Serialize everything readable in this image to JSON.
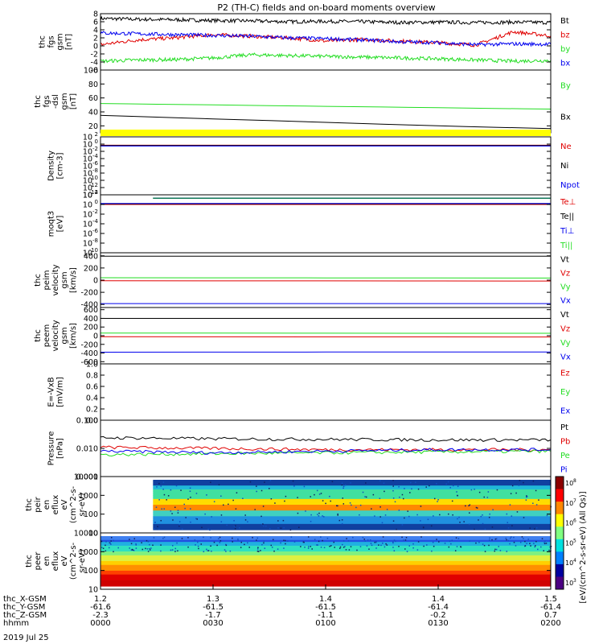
{
  "title": "P2 (TH-C) fields and on-board moments overview",
  "date_label": "2019 Jul 25",
  "colors": {
    "black": "#000000",
    "red": "#e00000",
    "green": "#22dd22",
    "blue": "#0000ee",
    "yellow": "#ffff00",
    "teal": "#0a6a5a"
  },
  "chart_data": [
    {
      "type": "line",
      "id": "fgs",
      "ylabel": [
        "thc",
        "fgs",
        "gsm",
        "[nT]"
      ],
      "ylim": [
        -6,
        8
      ],
      "yticks": [
        -6,
        -4,
        -2,
        0,
        2,
        4,
        6,
        8
      ],
      "tick_labels": [
        "-6",
        "-4",
        "-2",
        "0",
        "2",
        "4",
        "6",
        "8"
      ],
      "series": [
        {
          "name": "Bt",
          "color": "black",
          "x": [
            0,
            10,
            20,
            30,
            40,
            50,
            60,
            70,
            80,
            90,
            100,
            110,
            120
          ],
          "y": [
            6.8,
            6.6,
            6.5,
            6.3,
            6.2,
            6.0,
            6.1,
            6.0,
            5.8,
            5.9,
            5.8,
            5.9,
            5.8
          ]
        },
        {
          "name": "bz",
          "color": "red",
          "x": [
            0,
            10,
            20,
            30,
            40,
            50,
            60,
            70,
            80,
            90,
            100,
            110,
            120
          ],
          "y": [
            0.3,
            1.5,
            2.0,
            2.8,
            2.4,
            2.0,
            1.2,
            1.6,
            1.2,
            0.8,
            0.2,
            3.5,
            2.5
          ]
        },
        {
          "name": "by",
          "color": "green",
          "x": [
            0,
            10,
            20,
            30,
            40,
            50,
            60,
            70,
            80,
            90,
            100,
            110,
            120
          ],
          "y": [
            -3.8,
            -3.5,
            -3.4,
            -3.0,
            -2.2,
            -2.4,
            -2.6,
            -2.8,
            -3.0,
            -3.2,
            -3.5,
            -3.8,
            -3.6
          ]
        },
        {
          "name": "bx",
          "color": "blue",
          "x": [
            0,
            10,
            20,
            30,
            40,
            50,
            60,
            70,
            80,
            90,
            100,
            110,
            120
          ],
          "y": [
            3.2,
            3.0,
            2.8,
            2.6,
            2.4,
            2.0,
            1.8,
            1.5,
            1.0,
            0.8,
            0.3,
            0.5,
            0.4
          ]
        }
      ]
    },
    {
      "type": "line",
      "id": "fgs_dsl",
      "ylabel": [
        "thc",
        "fgs",
        "-dsl",
        "gsm",
        "[nT]"
      ],
      "ylim": [
        10,
        100
      ],
      "yticks": [
        20,
        40,
        60,
        80,
        100
      ],
      "tick_labels": [
        "20",
        "40",
        "60",
        "80",
        "100"
      ],
      "series": [
        {
          "name": "By",
          "color": "green",
          "x": [
            0,
            30,
            60,
            90,
            120
          ],
          "y": [
            52,
            50,
            48,
            46,
            44
          ]
        },
        {
          "name": "Bx",
          "color": "black",
          "x": [
            0,
            30,
            60,
            90,
            120
          ],
          "y": [
            35,
            30,
            25,
            20,
            16
          ]
        }
      ]
    },
    {
      "type": "line",
      "id": "density",
      "yscale": "log",
      "ylabel": [
        "Density",
        "[cm-3]"
      ],
      "ylim": [
        1e-14,
        100
      ],
      "tick_labels": [
        "10",
        "10",
        "10",
        "10",
        "10",
        "10",
        "10",
        "10",
        "10"
      ],
      "tick_exps": [
        "2",
        "0",
        "-2",
        "-4",
        "-6",
        "-8",
        "-10",
        "-12",
        "-14"
      ],
      "series": [
        {
          "name": "Ne",
          "color": "red",
          "x": [
            0,
            120
          ],
          "y": [
            0.5,
            0.5
          ]
        },
        {
          "name": "Ni",
          "color": "black",
          "x": [
            0,
            120
          ],
          "y": [
            0.4,
            0.4
          ]
        },
        {
          "name": "Npot",
          "color": "blue",
          "x": [
            0,
            120
          ],
          "y": [
            0.3,
            0.3
          ]
        }
      ]
    },
    {
      "type": "line",
      "id": "moqt3",
      "yscale": "log",
      "ylabel": [
        "moqt3",
        "[eV]"
      ],
      "ylim": [
        1e-10,
        100
      ],
      "tick_labels": [
        "10",
        "10",
        "10",
        "10",
        "10",
        "10",
        "10"
      ],
      "tick_exps": [
        "2",
        "0",
        "-2",
        "-4",
        "-6",
        "-8",
        "-10"
      ],
      "series": [
        {
          "name": "Te⊥",
          "color": "red",
          "x": [
            0,
            120
          ],
          "y": [
            1,
            1
          ]
        },
        {
          "name": "Te||",
          "color": "black",
          "x": [
            0,
            120
          ],
          "y": [
            1.3,
            1.3
          ]
        },
        {
          "name": "Ti⊥",
          "color": "blue",
          "x": [
            0,
            120
          ],
          "y": [
            1.6,
            1.6
          ]
        },
        {
          "name": "Ti||",
          "color": "green",
          "x": [
            14,
            120
          ],
          "y": [
            20,
            20
          ]
        }
      ]
    },
    {
      "type": "line",
      "id": "peim",
      "ylabel": [
        "thc",
        "peim",
        "velocity",
        "gsm",
        "[km/s]"
      ],
      "ylim": [
        -450,
        450
      ],
      "yticks": [
        -400,
        -200,
        0,
        200,
        400
      ],
      "tick_labels": [
        "-400",
        "-200",
        "0",
        "200",
        "400"
      ],
      "series": [
        {
          "name": "Vt",
          "color": "black",
          "x": [
            0,
            120
          ],
          "y": [
            395,
            395
          ]
        },
        {
          "name": "Vz",
          "color": "red",
          "x": [
            0,
            120
          ],
          "y": [
            -10,
            -15
          ]
        },
        {
          "name": "Vy",
          "color": "green",
          "x": [
            0,
            120
          ],
          "y": [
            40,
            35
          ]
        },
        {
          "name": "Vx",
          "color": "blue",
          "x": [
            0,
            120
          ],
          "y": [
            -385,
            -385
          ]
        }
      ]
    },
    {
      "type": "line",
      "id": "peem",
      "ylabel": [
        "thc",
        "peem",
        "velocity",
        "gsm",
        "[km/s]"
      ],
      "ylim": [
        -650,
        650
      ],
      "yticks": [
        -600,
        -400,
        -200,
        0,
        200,
        400,
        600
      ],
      "tick_labels": [
        "-600",
        "-400",
        "-200",
        "0",
        "200",
        "400",
        "600"
      ],
      "series": [
        {
          "name": "Vt",
          "color": "black",
          "x": [
            0,
            120
          ],
          "y": [
            400,
            400
          ]
        },
        {
          "name": "Vz",
          "color": "red",
          "x": [
            0,
            120
          ],
          "y": [
            -25,
            -30
          ]
        },
        {
          "name": "Vy",
          "color": "green",
          "x": [
            0,
            120
          ],
          "y": [
            60,
            55
          ]
        },
        {
          "name": "Vx",
          "color": "blue",
          "x": [
            0,
            120
          ],
          "y": [
            -380,
            -375
          ]
        }
      ]
    },
    {
      "type": "line",
      "id": "efield",
      "ylabel": [
        "E=-VxB",
        "[mV/m]"
      ],
      "ylim": [
        0,
        1
      ],
      "yticks": [
        0,
        0.2,
        0.4,
        0.6,
        0.8,
        1.0
      ],
      "tick_labels": [
        "0.0",
        "0.2",
        "0.4",
        "0.6",
        "0.8",
        "1.0"
      ],
      "series": [
        {
          "name": "Ez",
          "color": "red",
          "x": [],
          "y": []
        },
        {
          "name": "Ey",
          "color": "green",
          "x": [],
          "y": []
        },
        {
          "name": "Ex",
          "color": "blue",
          "x": [],
          "y": []
        }
      ]
    },
    {
      "type": "line",
      "id": "pressure",
      "yscale": "log",
      "ylabel": [
        "Pressure",
        "[nPa]"
      ],
      "ylim": [
        0.001,
        0.1
      ],
      "tick_labels": [
        "0.100",
        "0.010",
        "0.001"
      ],
      "series": [
        {
          "name": "Pt",
          "color": "black",
          "x": [
            0,
            30,
            60,
            90,
            120
          ],
          "y": [
            0.024,
            0.022,
            0.021,
            0.02,
            0.02
          ]
        },
        {
          "name": "Pb",
          "color": "red",
          "x": [
            0,
            30,
            60,
            90,
            120
          ],
          "y": [
            0.011,
            0.01,
            0.009,
            0.009,
            0.009
          ]
        },
        {
          "name": "Pe",
          "color": "green",
          "x": [
            0,
            30,
            60,
            90,
            120
          ],
          "y": [
            0.006,
            0.0065,
            0.007,
            0.0075,
            0.008
          ]
        },
        {
          "name": "Pi",
          "color": "blue",
          "x": [
            0,
            30,
            60,
            90,
            120
          ],
          "y": [
            0.008,
            0.007,
            0.008,
            0.009,
            0.009
          ]
        }
      ]
    },
    {
      "type": "heatmap",
      "id": "peir",
      "ylabel": [
        "thc",
        "peir",
        "en",
        "eflux",
        "eV",
        "(cm^2-s-",
        "sr-eV)"
      ],
      "ylim": [
        5,
        20000
      ],
      "yscale": "log",
      "tick_labels": [
        "10000",
        "1000",
        "100",
        "10"
      ],
      "start_min": 14,
      "colorbar_label": "eV/(cm^2-s-sr-eV) (All Qs)"
    },
    {
      "type": "heatmap",
      "id": "peer",
      "ylabel": [
        "thc",
        "peer",
        "en",
        "eflux",
        "eV",
        "(cm^2-s-",
        "sr-eV)"
      ],
      "ylim": [
        5,
        20000
      ],
      "yscale": "log",
      "tick_labels": [
        "10000",
        "1000",
        "100",
        "10"
      ],
      "start_min": 0
    }
  ],
  "colorbar_ticks": [
    "10",
    "10",
    "10",
    "10",
    "10",
    "10"
  ],
  "colorbar_exps": [
    "8",
    "7",
    "6",
    "5",
    "4",
    "3"
  ],
  "x_axis": {
    "row_labels": [
      "thc_X-GSM",
      "thc_Y-GSM",
      "thc_Z-GSM",
      "hhmm"
    ],
    "ticks": [
      {
        "min": 0,
        "vals": [
          "1.2",
          "-61.6",
          "-2.3",
          "0000"
        ]
      },
      {
        "min": 30,
        "vals": [
          "1.3",
          "-61.5",
          "-1.7",
          "0030"
        ]
      },
      {
        "min": 60,
        "vals": [
          "1.4",
          "-61.5",
          "-1.1",
          "0100"
        ]
      },
      {
        "min": 90,
        "vals": [
          "1.4",
          "-61.4",
          "-0.2",
          "0130"
        ]
      },
      {
        "min": 120,
        "vals": [
          "1.5",
          "-61.4",
          "0.7",
          "0200"
        ]
      }
    ]
  }
}
